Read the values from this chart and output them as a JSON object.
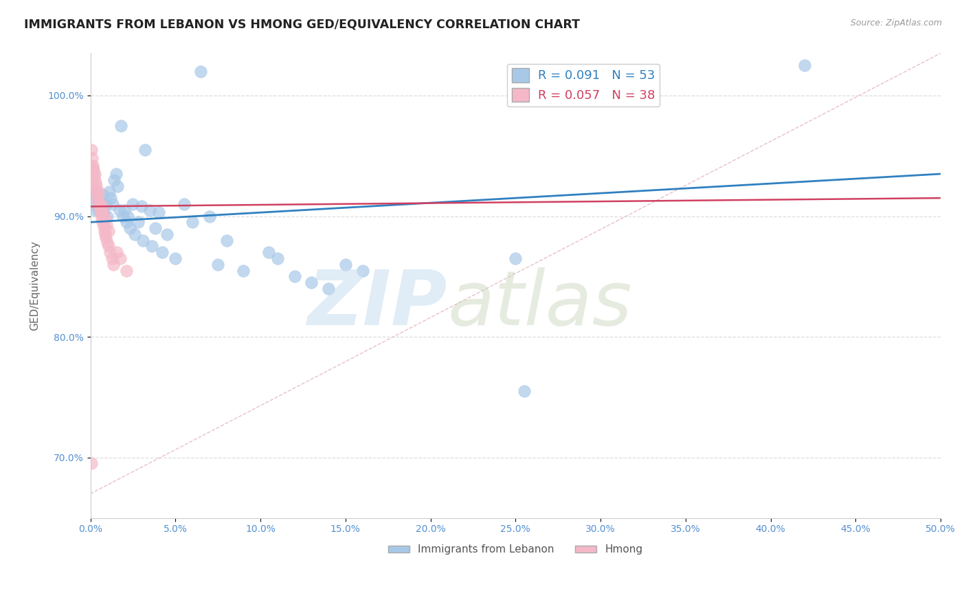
{
  "title": "IMMIGRANTS FROM LEBANON VS HMONG GED/EQUIVALENCY CORRELATION CHART",
  "source": "Source: ZipAtlas.com",
  "ylabel": "GED/Equivalency",
  "x_min": 0.0,
  "x_max": 50.0,
  "y_min": 65.0,
  "y_max": 103.5,
  "x_ticks": [
    0.0,
    5.0,
    10.0,
    15.0,
    20.0,
    25.0,
    30.0,
    35.0,
    40.0,
    45.0,
    50.0
  ],
  "y_ticks": [
    70.0,
    80.0,
    90.0,
    100.0
  ],
  "x_tick_labels": [
    "0.0%",
    "5.0%",
    "10.0%",
    "15.0%",
    "20.0%",
    "25.0%",
    "30.0%",
    "35.0%",
    "40.0%",
    "45.0%",
    "50.0%"
  ],
  "y_tick_labels": [
    "70.0%",
    "80.0%",
    "90.0%",
    "100.0%"
  ],
  "legend_labels": [
    "Immigrants from Lebanon",
    "Hmong"
  ],
  "R_blue": 0.091,
  "N_blue": 53,
  "R_pink": 0.057,
  "N_pink": 38,
  "blue_color": "#a8c8e8",
  "pink_color": "#f4b8c8",
  "blue_line_color": "#3080c0",
  "pink_line_color": "#d04060",
  "diag_line_color": "#e0b0b8",
  "grid_color": "#dddddd",
  "title_color": "#222222",
  "axis_color": "#5590d0",
  "blue_x": [
    1.8,
    6.5,
    3.2,
    0.5,
    1.2,
    0.9,
    0.4,
    0.3,
    0.8,
    1.0,
    2.5,
    3.0,
    3.5,
    4.0,
    5.5,
    7.0,
    1.5,
    1.4,
    1.6,
    1.1,
    0.6,
    0.7,
    2.0,
    2.2,
    2.8,
    3.8,
    4.5,
    6.0,
    8.0,
    10.5,
    11.0,
    15.0,
    16.0,
    25.0,
    25.5,
    42.0,
    0.2,
    1.3,
    1.7,
    1.9,
    2.1,
    2.3,
    2.6,
    3.1,
    3.6,
    4.2,
    5.0,
    7.5,
    9.0,
    12.0,
    13.0,
    14.0,
    0.1
  ],
  "blue_y": [
    97.5,
    102.0,
    95.5,
    90.5,
    91.5,
    91.0,
    90.8,
    90.5,
    90.3,
    90.0,
    91.0,
    90.8,
    90.5,
    90.3,
    91.0,
    90.0,
    93.5,
    93.0,
    92.5,
    92.0,
    91.2,
    91.8,
    90.5,
    90.0,
    89.5,
    89.0,
    88.5,
    89.5,
    88.0,
    87.0,
    86.5,
    86.0,
    85.5,
    86.5,
    75.5,
    102.5,
    91.5,
    91.0,
    90.5,
    90.0,
    89.5,
    89.0,
    88.5,
    88.0,
    87.5,
    87.0,
    86.5,
    86.0,
    85.5,
    85.0,
    84.5,
    84.0,
    92.0
  ],
  "pink_x": [
    0.05,
    0.08,
    0.12,
    0.18,
    0.22,
    0.28,
    0.32,
    0.38,
    0.42,
    0.48,
    0.52,
    0.58,
    0.62,
    0.68,
    0.72,
    0.78,
    0.82,
    0.88,
    0.92,
    0.98,
    1.05,
    1.15,
    1.25,
    1.35,
    0.15,
    0.25,
    0.35,
    0.45,
    0.55,
    0.65,
    0.75,
    0.85,
    0.95,
    1.05,
    1.55,
    1.75,
    2.1,
    0.05
  ],
  "pink_y": [
    95.5,
    94.8,
    94.2,
    93.8,
    93.2,
    92.8,
    92.2,
    91.8,
    91.5,
    91.2,
    90.8,
    90.5,
    90.2,
    89.8,
    89.5,
    89.2,
    88.8,
    88.5,
    88.2,
    87.8,
    87.5,
    87.0,
    86.5,
    86.0,
    94.0,
    93.5,
    92.5,
    92.0,
    91.0,
    90.8,
    90.3,
    89.8,
    89.3,
    88.8,
    87.0,
    86.5,
    85.5,
    69.5
  ]
}
